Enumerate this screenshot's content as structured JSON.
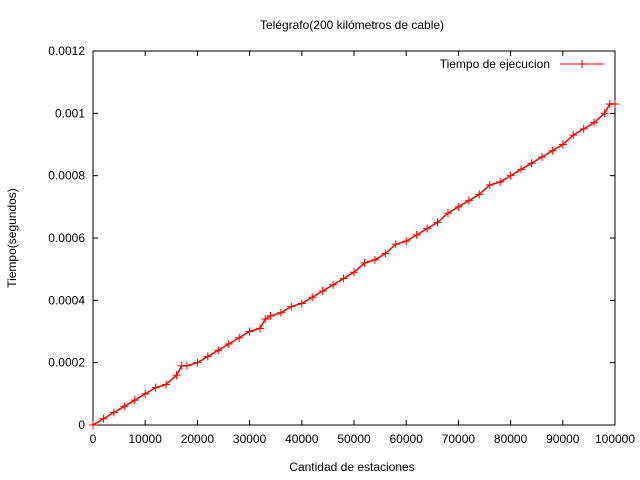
{
  "chart_data": {
    "type": "line",
    "title": "Telégrafo(200 kilómetros de cable)",
    "xlabel": "Cantidad de estaciones",
    "ylabel": "Tiempo(segundos)",
    "xlim": [
      0,
      100000
    ],
    "ylim": [
      0,
      0.0012
    ],
    "x_ticks": [
      0,
      10000,
      20000,
      30000,
      40000,
      50000,
      60000,
      70000,
      80000,
      90000,
      100000
    ],
    "x_tick_labels": [
      "0",
      "10000",
      "20000",
      "30000",
      "40000",
      "50000",
      "60000",
      "70000",
      "80000",
      "90000",
      "100000"
    ],
    "y_ticks": [
      0,
      0.0002,
      0.0004,
      0.0006,
      0.0008,
      0.001,
      0.0012
    ],
    "y_tick_labels": [
      "0",
      "0.0002",
      "0.0004",
      "0.0006",
      "0.0008",
      "0.001",
      "0.0012"
    ],
    "grid": false,
    "legend_position": "top-right",
    "colors": {
      "series": "#ff0000",
      "axes": "#000000"
    },
    "marker": "plus",
    "series": [
      {
        "name": "Tiempo de ejecucion",
        "x": [
          0,
          2000,
          4000,
          6000,
          8000,
          10000,
          12000,
          14000,
          16000,
          17000,
          18000,
          20000,
          22000,
          24000,
          26000,
          28000,
          30000,
          32000,
          33000,
          34000,
          36000,
          38000,
          40000,
          42000,
          44000,
          46000,
          48000,
          50000,
          52000,
          54000,
          56000,
          58000,
          60000,
          62000,
          64000,
          66000,
          68000,
          70000,
          72000,
          74000,
          76000,
          78000,
          80000,
          82000,
          84000,
          86000,
          88000,
          90000,
          92000,
          94000,
          96000,
          98000,
          99000,
          100000
        ],
        "values": [
          0,
          2e-05,
          4e-05,
          6e-05,
          8e-05,
          0.0001,
          0.00012,
          0.00013,
          0.00016,
          0.00019,
          0.00019,
          0.0002,
          0.00022,
          0.00024,
          0.00026,
          0.00028,
          0.0003,
          0.00031,
          0.00034,
          0.00035,
          0.00036,
          0.00038,
          0.00039,
          0.00041,
          0.00043,
          0.00045,
          0.00047,
          0.00049,
          0.00052,
          0.00053,
          0.00055,
          0.00058,
          0.00059,
          0.00061,
          0.00063,
          0.00065,
          0.00068,
          0.0007,
          0.00072,
          0.00074,
          0.00077,
          0.00078,
          0.0008,
          0.00082,
          0.00084,
          0.00086,
          0.00088,
          0.0009,
          0.00093,
          0.00095,
          0.00097,
          0.001,
          0.00103,
          0.00103
        ]
      }
    ]
  }
}
